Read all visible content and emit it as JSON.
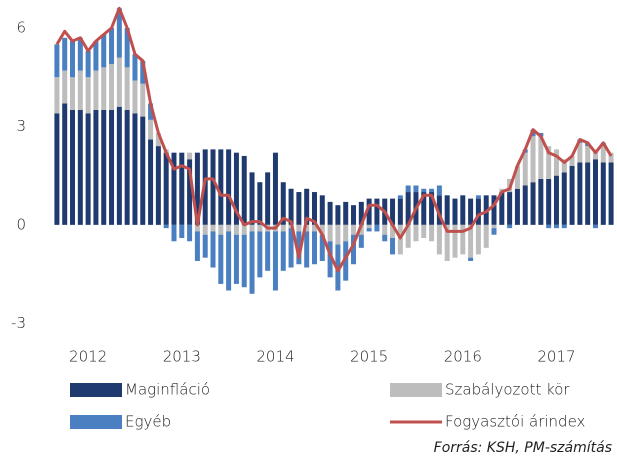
{
  "chart_data": {
    "type": "bar",
    "categories": [
      null,
      null,
      null,
      null,
      "2012",
      null,
      null,
      null,
      null,
      null,
      null,
      null,
      null,
      null,
      null,
      null,
      "2013",
      null,
      null,
      null,
      null,
      null,
      null,
      null,
      null,
      null,
      null,
      null,
      "2014",
      null,
      null,
      null,
      null,
      null,
      null,
      null,
      null,
      null,
      null,
      null,
      "2015",
      null,
      null,
      null,
      null,
      null,
      null,
      null,
      null,
      null,
      null,
      null,
      "2016",
      null,
      null,
      null,
      null,
      null,
      null,
      null,
      null,
      null,
      null,
      null,
      "2017",
      null,
      null,
      null,
      null,
      null,
      null,
      null
    ],
    "series": [
      {
        "name": "Maginfláció",
        "color": "#1f3a6e",
        "values": [
          3.4,
          3.7,
          3.5,
          3.5,
          3.4,
          3.5,
          3.5,
          3.5,
          3.6,
          3.5,
          3.4,
          3.3,
          2.6,
          2.4,
          2.2,
          2.2,
          2.2,
          2.0,
          2.2,
          2.3,
          2.3,
          2.3,
          2.3,
          2.2,
          2.1,
          1.6,
          1.3,
          1.6,
          2.2,
          1.3,
          1.1,
          1.0,
          1.1,
          1.0,
          0.9,
          0.7,
          0.6,
          0.7,
          0.6,
          0.7,
          0.8,
          0.8,
          0.8,
          0.8,
          0.8,
          1.0,
          1.0,
          1.0,
          1.0,
          0.9,
          0.9,
          0.8,
          0.9,
          0.8,
          0.8,
          0.9,
          0.9,
          1.0,
          1.0,
          1.1,
          1.2,
          1.3,
          1.4,
          1.4,
          1.5,
          1.6,
          1.8,
          1.9,
          1.9,
          2.0,
          1.9,
          1.9
        ]
      },
      {
        "name": "Szabályozott kör",
        "color": "#bdbdbd",
        "values": [
          1.1,
          1.0,
          1.0,
          1.2,
          1.1,
          1.2,
          1.3,
          1.4,
          1.5,
          1.3,
          1.0,
          1.0,
          0.6,
          0.4,
          0.1,
          0.0,
          0.0,
          0.2,
          -0.2,
          -0.3,
          -0.2,
          -0.3,
          -0.2,
          -0.3,
          -0.3,
          -0.2,
          -0.2,
          -0.2,
          -0.2,
          -0.2,
          -0.1,
          -0.2,
          -0.2,
          -0.2,
          -0.3,
          -0.5,
          -0.6,
          -0.5,
          -0.3,
          -0.3,
          -0.1,
          0.0,
          -0.3,
          -0.4,
          -0.9,
          -0.7,
          -0.5,
          -0.4,
          -0.5,
          -0.9,
          -1.1,
          -1.0,
          -0.9,
          -1.0,
          -0.9,
          -0.7,
          -0.1,
          0.1,
          0.4,
          0.7,
          1.0,
          1.4,
          1.3,
          1.0,
          0.8,
          0.4,
          0.3,
          0.6,
          0.5,
          0.3,
          0.5,
          0.3
        ]
      },
      {
        "name": "Egyéb",
        "color": "#4a7fc1",
        "values": [
          1.0,
          1.0,
          1.1,
          1.0,
          0.8,
          0.9,
          1.0,
          1.1,
          1.5,
          1.2,
          0.8,
          0.7,
          0.5,
          0.0,
          -0.1,
          -0.5,
          -0.4,
          -0.5,
          -0.9,
          -0.7,
          -1.1,
          -1.5,
          -1.8,
          -1.5,
          -1.6,
          -1.9,
          -1.4,
          -1.2,
          -1.8,
          -1.2,
          -1.2,
          -1.0,
          -1.1,
          -1.0,
          -0.8,
          -1.1,
          -1.4,
          -1.2,
          -0.9,
          -0.4,
          -0.1,
          -0.2,
          -0.2,
          -0.5,
          0.1,
          0.2,
          0.2,
          0.1,
          0.1,
          0.3,
          0.0,
          0.0,
          0.0,
          -0.1,
          0.1,
          0.0,
          -0.2,
          0.0,
          -0.1,
          0.0,
          0.1,
          0.2,
          0.1,
          -0.1,
          -0.1,
          -0.1,
          0.0,
          0.1,
          0.1,
          -0.1,
          0.1,
          0.0
        ]
      },
      {
        "name": "Fogyasztói árindex",
        "color": "#c0504d",
        "type": "line",
        "values": [
          5.5,
          5.9,
          5.6,
          5.7,
          5.3,
          5.6,
          5.8,
          6.0,
          6.6,
          6.0,
          5.2,
          5.0,
          3.7,
          2.8,
          2.2,
          1.7,
          1.8,
          1.7,
          0.0,
          1.4,
          1.4,
          0.9,
          0.9,
          0.4,
          0.0,
          0.1,
          0.1,
          -0.1,
          -0.1,
          0.2,
          0.1,
          -1.0,
          0.2,
          0.1,
          -0.3,
          -0.9,
          -1.4,
          -1.0,
          -0.6,
          0.0,
          0.6,
          0.6,
          0.4,
          0.0,
          -0.4,
          0.0,
          0.5,
          0.9,
          0.9,
          0.3,
          -0.2,
          -0.2,
          -0.2,
          -0.1,
          0.3,
          0.4,
          0.6,
          1.0,
          1.1,
          1.8,
          2.3,
          2.9,
          2.7,
          2.2,
          2.1,
          1.9,
          2.1,
          2.6,
          2.5,
          2.2,
          2.5,
          2.1
        ]
      }
    ],
    "ylim": [
      -3.6,
      6.7
    ],
    "yticks": [
      6,
      3,
      0,
      -3
    ],
    "source": "Forrás: KSH,  PM-számítás"
  }
}
